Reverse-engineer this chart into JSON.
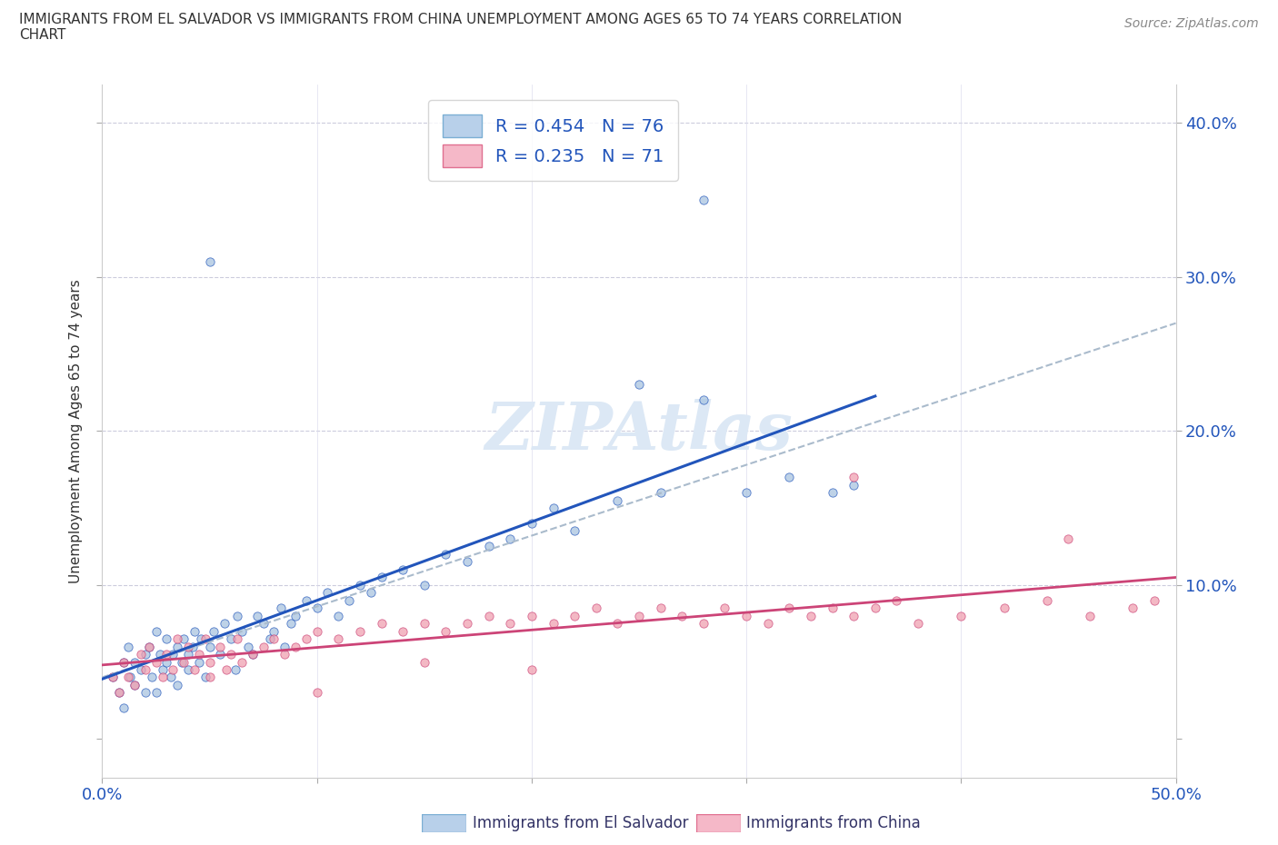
{
  "title_line1": "IMMIGRANTS FROM EL SALVADOR VS IMMIGRANTS FROM CHINA UNEMPLOYMENT AMONG AGES 65 TO 74 YEARS CORRELATION",
  "title_line2": "CHART",
  "source": "Source: ZipAtlas.com",
  "ylabel": "Unemployment Among Ages 65 to 74 years",
  "xlim": [
    0.0,
    0.5
  ],
  "ylim": [
    -0.025,
    0.425
  ],
  "color_el_salvador": "#a8c4e0",
  "color_china": "#f0a0b0",
  "trend_color_el_salvador": "#2255bb",
  "trend_color_china": "#cc4477",
  "trend_dashed_color": "#aabbcc",
  "watermark_color": "#dce8f5",
  "legend_color_es": "#b8d0ea",
  "legend_color_ch": "#f5b8c8",
  "es_scatter": {
    "x": [
      0.005,
      0.008,
      0.01,
      0.01,
      0.012,
      0.013,
      0.015,
      0.015,
      0.018,
      0.02,
      0.02,
      0.022,
      0.023,
      0.025,
      0.025,
      0.027,
      0.028,
      0.03,
      0.03,
      0.032,
      0.033,
      0.035,
      0.035,
      0.037,
      0.038,
      0.04,
      0.04,
      0.042,
      0.043,
      0.045,
      0.046,
      0.048,
      0.05,
      0.052,
      0.055,
      0.057,
      0.06,
      0.062,
      0.063,
      0.065,
      0.068,
      0.07,
      0.072,
      0.075,
      0.078,
      0.08,
      0.083,
      0.085,
      0.088,
      0.09,
      0.095,
      0.1,
      0.105,
      0.11,
      0.115,
      0.12,
      0.125,
      0.13,
      0.14,
      0.15,
      0.16,
      0.17,
      0.18,
      0.19,
      0.2,
      0.21,
      0.22,
      0.24,
      0.26,
      0.28,
      0.3,
      0.32,
      0.34,
      0.35,
      0.28,
      0.25,
      0.05
    ],
    "y": [
      0.04,
      0.03,
      0.05,
      0.02,
      0.06,
      0.04,
      0.05,
      0.035,
      0.045,
      0.055,
      0.03,
      0.06,
      0.04,
      0.07,
      0.03,
      0.055,
      0.045,
      0.05,
      0.065,
      0.04,
      0.055,
      0.06,
      0.035,
      0.05,
      0.065,
      0.055,
      0.045,
      0.06,
      0.07,
      0.05,
      0.065,
      0.04,
      0.06,
      0.07,
      0.055,
      0.075,
      0.065,
      0.045,
      0.08,
      0.07,
      0.06,
      0.055,
      0.08,
      0.075,
      0.065,
      0.07,
      0.085,
      0.06,
      0.075,
      0.08,
      0.09,
      0.085,
      0.095,
      0.08,
      0.09,
      0.1,
      0.095,
      0.105,
      0.11,
      0.1,
      0.12,
      0.115,
      0.125,
      0.13,
      0.14,
      0.15,
      0.135,
      0.155,
      0.16,
      0.22,
      0.16,
      0.17,
      0.16,
      0.165,
      0.35,
      0.23,
      0.31
    ]
  },
  "ch_scatter": {
    "x": [
      0.005,
      0.008,
      0.01,
      0.012,
      0.015,
      0.018,
      0.02,
      0.022,
      0.025,
      0.028,
      0.03,
      0.033,
      0.035,
      0.038,
      0.04,
      0.043,
      0.045,
      0.048,
      0.05,
      0.055,
      0.058,
      0.06,
      0.063,
      0.065,
      0.07,
      0.075,
      0.08,
      0.085,
      0.09,
      0.095,
      0.1,
      0.11,
      0.12,
      0.13,
      0.14,
      0.15,
      0.16,
      0.17,
      0.18,
      0.19,
      0.2,
      0.21,
      0.22,
      0.23,
      0.24,
      0.25,
      0.26,
      0.27,
      0.28,
      0.29,
      0.3,
      0.31,
      0.32,
      0.33,
      0.34,
      0.35,
      0.36,
      0.37,
      0.38,
      0.4,
      0.42,
      0.44,
      0.46,
      0.48,
      0.49,
      0.05,
      0.1,
      0.15,
      0.2,
      0.35,
      0.45
    ],
    "y": [
      0.04,
      0.03,
      0.05,
      0.04,
      0.035,
      0.055,
      0.045,
      0.06,
      0.05,
      0.04,
      0.055,
      0.045,
      0.065,
      0.05,
      0.06,
      0.045,
      0.055,
      0.065,
      0.05,
      0.06,
      0.045,
      0.055,
      0.065,
      0.05,
      0.055,
      0.06,
      0.065,
      0.055,
      0.06,
      0.065,
      0.07,
      0.065,
      0.07,
      0.075,
      0.07,
      0.075,
      0.07,
      0.075,
      0.08,
      0.075,
      0.08,
      0.075,
      0.08,
      0.085,
      0.075,
      0.08,
      0.085,
      0.08,
      0.075,
      0.085,
      0.08,
      0.075,
      0.085,
      0.08,
      0.085,
      0.08,
      0.085,
      0.09,
      0.075,
      0.08,
      0.085,
      0.09,
      0.08,
      0.085,
      0.09,
      0.04,
      0.03,
      0.05,
      0.045,
      0.17,
      0.13
    ]
  }
}
